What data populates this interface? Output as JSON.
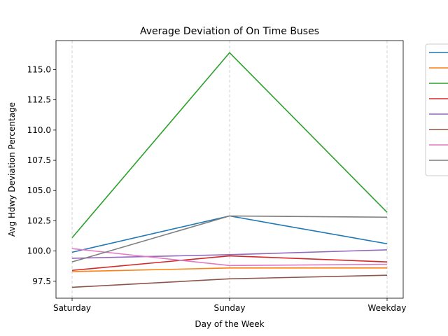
{
  "chart_data": {
    "type": "line",
    "title": "Average Deviation of On Time Buses",
    "xlabel": "Day of the Week",
    "ylabel": "Avg Hdwy Deviation Percentage",
    "categories": [
      "Saturday",
      "Sunday",
      "Weekday"
    ],
    "ylim": [
      96.1,
      117.4
    ],
    "yticks": [
      "97.5",
      "100.0",
      "102.5",
      "105.0",
      "107.5",
      "110.0",
      "112.5",
      "115.0"
    ],
    "grid": "vertical dashed",
    "legend_position": "outside right",
    "series": [
      {
        "color": "#1f77b4",
        "values": [
          99.9,
          102.9,
          100.6
        ]
      },
      {
        "color": "#ff7f0e",
        "values": [
          98.3,
          98.6,
          98.6
        ]
      },
      {
        "color": "#2ca02c",
        "values": [
          101.1,
          116.4,
          103.2
        ]
      },
      {
        "color": "#d62728",
        "values": [
          98.4,
          99.6,
          99.1
        ]
      },
      {
        "color": "#9467bd",
        "values": [
          99.4,
          99.7,
          100.1
        ]
      },
      {
        "color": "#8c564b",
        "values": [
          97.0,
          97.7,
          98.0
        ]
      },
      {
        "color": "#e377c2",
        "values": [
          100.2,
          98.8,
          98.9
        ]
      },
      {
        "color": "#7f7f7f",
        "values": [
          99.1,
          102.9,
          102.8
        ]
      }
    ]
  }
}
